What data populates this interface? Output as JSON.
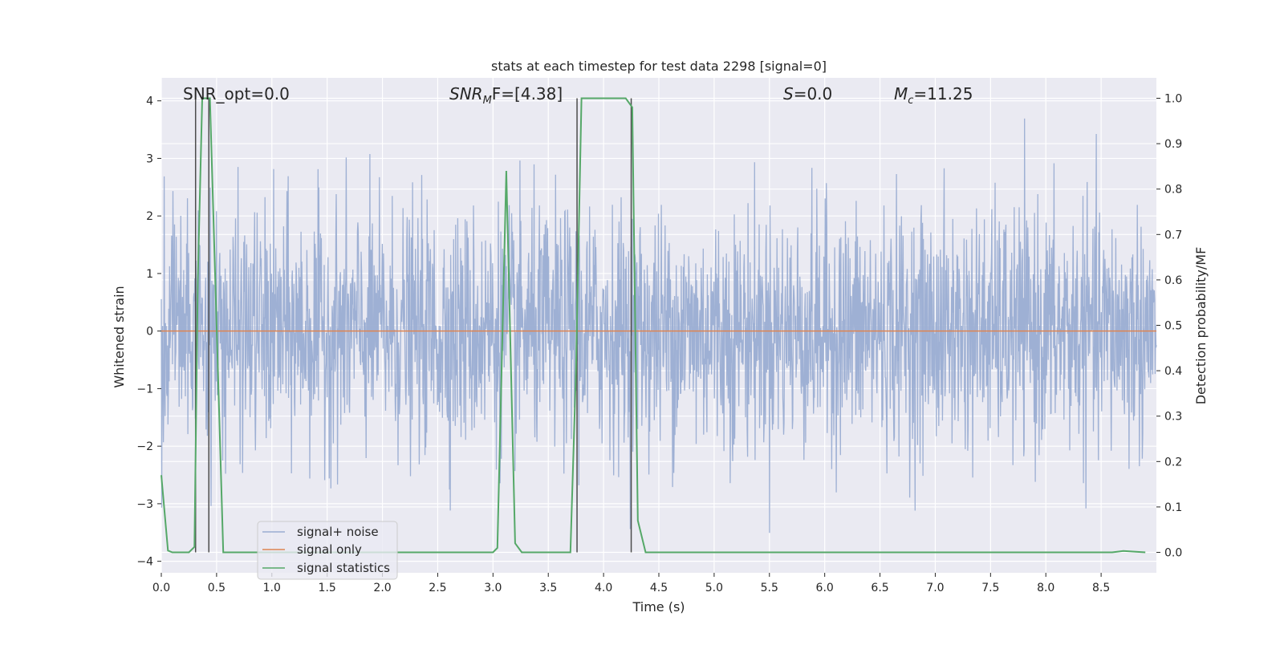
{
  "chart_data": {
    "type": "line",
    "title": "stats at each timestep for test data 2298 [signal=0]",
    "xlabel": "Time (s)",
    "ylabel_left": "Whitened strain",
    "ylabel_right": "Detection probability/MF",
    "xlim": [
      0.0,
      9.0
    ],
    "ylim_left": [
      -4.2,
      4.4
    ],
    "ylim_right": [
      -0.045,
      1.045
    ],
    "x_ticks": [
      "0.0",
      "0.5",
      "1.0",
      "1.5",
      "2.0",
      "2.5",
      "3.0",
      "3.5",
      "4.0",
      "4.5",
      "5.0",
      "5.5",
      "6.0",
      "6.5",
      "7.0",
      "7.5",
      "8.0",
      "8.5"
    ],
    "y_left_ticks": [
      "4",
      "3",
      "2",
      "1",
      "0",
      "−1",
      "−2",
      "−3",
      "−4"
    ],
    "y_right_ticks": [
      "1.0",
      "0.9",
      "0.8",
      "0.7",
      "0.6",
      "0.5",
      "0.4",
      "0.3",
      "0.2",
      "0.1",
      "0.0"
    ],
    "grid": true,
    "annotations": {
      "snr_opt": "SNR_opt=0.0",
      "snr_mf_prefix": "SNR",
      "snr_mf_sub": "M",
      "snr_mf_suffix": "F=[4.38]",
      "s_label": "S",
      "s_value": "=0.0",
      "mc_label": "M",
      "mc_sub": "c",
      "mc_value": "=11.25"
    },
    "legend": {
      "placement": "lower-left",
      "entries": [
        {
          "label": "signal+ noise",
          "color": "#9aadd2"
        },
        {
          "label": "signal only",
          "color": "#dd8452"
        },
        {
          "label": "signal statistics",
          "color": "#55a868"
        }
      ]
    },
    "series": [
      {
        "name": "signal+ noise",
        "color": "#9aadd2",
        "description_kind": "noise",
        "envelope_p90": 1.7,
        "envelope_max": 4.0,
        "envelope_min": -4.0
      },
      {
        "name": "signal only",
        "color": "#dd8452",
        "x": [
          0.0,
          9.0
        ],
        "y": [
          0.0,
          0.0
        ]
      },
      {
        "name": "signal statistics",
        "color": "#55a868",
        "x": [
          0.0,
          0.06,
          0.1,
          0.25,
          0.3,
          0.33,
          0.37,
          0.44,
          0.5,
          0.56,
          1.0,
          2.0,
          3.0,
          3.04,
          3.12,
          3.2,
          3.26,
          3.5,
          3.7,
          3.75,
          3.8,
          4.0,
          4.2,
          4.26,
          4.31,
          4.38,
          5.0,
          6.0,
          7.0,
          8.0,
          8.6,
          8.7,
          8.9
        ],
        "y": [
          0.17,
          0.004,
          0.0,
          0.0,
          0.012,
          0.6,
          1.0,
          1.0,
          0.5,
          0.0,
          0.0,
          0.0,
          0.0,
          0.01,
          0.84,
          0.02,
          0.0,
          0.0,
          0.0,
          0.4,
          1.0,
          1.0,
          1.0,
          0.98,
          0.07,
          0.0,
          0.0,
          0.0,
          0.0,
          0.0,
          0.0,
          0.003,
          0.0
        ]
      }
    ],
    "vertical_markers": {
      "color": "#4c4c4c",
      "x": [
        0.31,
        0.43,
        3.76,
        4.25
      ]
    }
  }
}
